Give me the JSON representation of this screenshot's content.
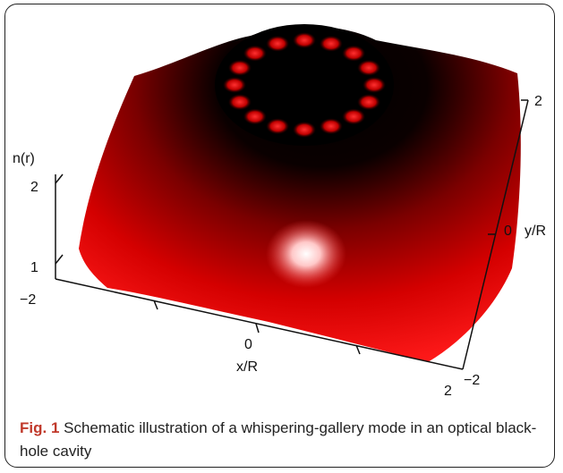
{
  "figure": {
    "z_axis": {
      "label": "n(r)",
      "ticks": [
        "2",
        "1"
      ]
    },
    "x_axis": {
      "label": "x/R",
      "ticks": [
        "−2",
        "0",
        "2"
      ]
    },
    "y_axis": {
      "label": "y/R",
      "ticks": [
        "−2",
        "0",
        "2"
      ]
    }
  },
  "caption": {
    "label": "Fig. 1",
    "text": "Schematic illustration of a whispering-gallery mode in an optical black-hole cavity"
  }
}
